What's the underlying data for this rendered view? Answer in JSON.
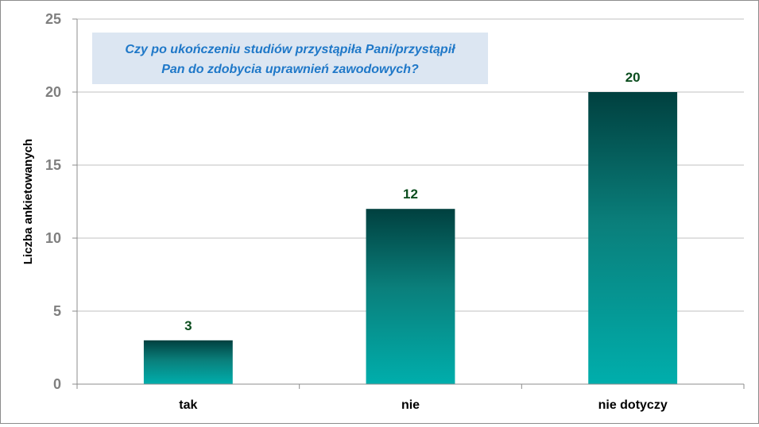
{
  "chart_data": {
    "type": "bar",
    "title_lines": [
      "Czy po ukończeniu studiów przystąpiła Pani/przystąpił",
      "Pan do zdobycia uprawnień zawodowych?"
    ],
    "xlabel": "",
    "ylabel": "Liczba ankietowanych",
    "categories": [
      "tak",
      "nie",
      "nie dotyczy"
    ],
    "values": [
      3,
      12,
      20
    ],
    "data_labels": [
      "3",
      "12",
      "20"
    ],
    "ylim": [
      0,
      25
    ],
    "yticks": [
      0,
      5,
      10,
      15,
      20,
      25
    ],
    "ytick_labels": [
      "0",
      "5",
      "10",
      "15",
      "20",
      "25"
    ],
    "grid": true,
    "legend": "none",
    "colors": {
      "bar_top": "#00403f",
      "bar_mid": "#0a7f7b",
      "bar_bottom": "#00aeac",
      "gridline": "#c0c0c0",
      "axis": "#8c8c8c",
      "title_box": "#dce6f2",
      "title_text": "#1f78c8",
      "data_label": "#0b4d1e",
      "tick_label": "#7f7f7f"
    }
  }
}
